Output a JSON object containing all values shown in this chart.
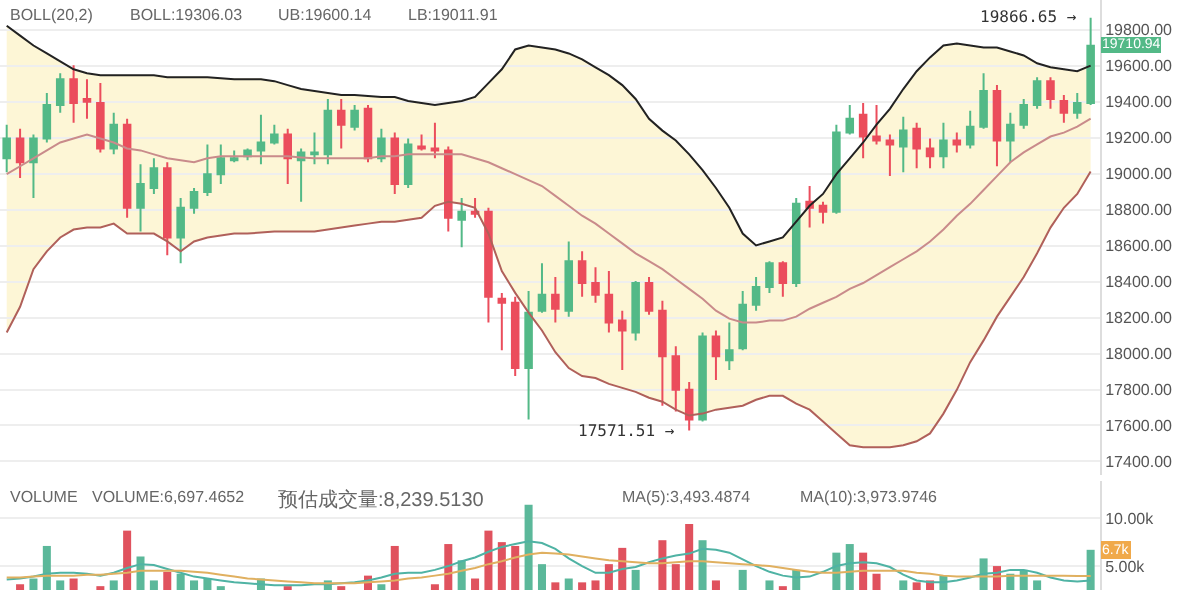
{
  "chart_data": [
    {
      "type": "candlestick",
      "categories": [
        null,
        null,
        null,
        null,
        null,
        null,
        null,
        null,
        null,
        null,
        null,
        null,
        null,
        null,
        null,
        null,
        null,
        null,
        null,
        null,
        null,
        null,
        null,
        null,
        null,
        null,
        null,
        null,
        null,
        null,
        null,
        null,
        null,
        null,
        null,
        null,
        null,
        null,
        null,
        null,
        null,
        null,
        null,
        null,
        null,
        null,
        null,
        null,
        null,
        null,
        null,
        null,
        null,
        null,
        null,
        null,
        null,
        null,
        null,
        null,
        null,
        null,
        null,
        null,
        null,
        null,
        null,
        null,
        null,
        null,
        null,
        null,
        null,
        null,
        null,
        null,
        null,
        null,
        null,
        null,
        null,
        null
      ],
      "ohlc": [
        [
          19085,
          19272,
          19008,
          19195
        ],
        [
          19195,
          19250,
          18975,
          19063
        ],
        [
          19063,
          19217,
          18865,
          19195
        ],
        [
          19195,
          19448,
          19173,
          19382
        ],
        [
          19382,
          19558,
          19338,
          19525
        ],
        [
          19525,
          19602,
          19283,
          19393
        ],
        [
          19415,
          19525,
          19305,
          19400
        ],
        [
          19393,
          19503,
          19118,
          19140
        ],
        [
          19140,
          19338,
          19107,
          19272
        ],
        [
          19272,
          19305,
          18755,
          18810
        ],
        [
          18810,
          19052,
          18678,
          18942
        ],
        [
          18920,
          19085,
          18887,
          19030
        ],
        [
          19030,
          19063,
          18546,
          18645
        ],
        [
          18645,
          18865,
          18502,
          18810
        ],
        [
          18810,
          18920,
          18777,
          18898
        ],
        [
          18898,
          19162,
          18876,
          18997
        ],
        [
          18997,
          19162,
          18942,
          19085
        ],
        [
          19074,
          19129,
          19063,
          19085
        ],
        [
          19096,
          19140,
          19074,
          19129
        ],
        [
          19129,
          19327,
          19052,
          19173
        ],
        [
          19173,
          19272,
          19162,
          19217
        ],
        [
          19217,
          19250,
          18942,
          19085
        ],
        [
          19074,
          19140,
          18843,
          19118
        ],
        [
          19107,
          19228,
          19052,
          19118
        ],
        [
          19107,
          19415,
          19052,
          19349
        ],
        [
          19349,
          19415,
          19140,
          19272
        ],
        [
          19261,
          19382,
          19239,
          19349
        ],
        [
          19360,
          19382,
          19063,
          19085
        ],
        [
          19085,
          19250,
          19063,
          19195
        ],
        [
          19195,
          19228,
          18887,
          18942
        ],
        [
          18942,
          19195,
          18920,
          19162
        ],
        [
          19151,
          19217,
          19129,
          19140
        ],
        [
          19140,
          19283,
          19085,
          19129
        ],
        [
          19129,
          19151,
          18678,
          18755
        ],
        [
          18744,
          18865,
          18590,
          18788
        ],
        [
          18788,
          18865,
          18755,
          18777
        ],
        [
          18788,
          18810,
          18172,
          18315
        ],
        [
          18304,
          18337,
          18018,
          18282
        ],
        [
          18282,
          18315,
          17875,
          17919
        ],
        [
          17919,
          18348,
          17633,
          18227
        ],
        [
          18238,
          18502,
          18227,
          18326
        ],
        [
          18326,
          18425,
          18172,
          18249
        ],
        [
          18238,
          18623,
          18205,
          18513
        ],
        [
          18513,
          18568,
          18315,
          18392
        ],
        [
          18392,
          18480,
          18282,
          18326
        ],
        [
          18326,
          18458,
          18117,
          18172
        ],
        [
          18183,
          18238,
          17908,
          18128
        ],
        [
          18117,
          18403,
          18073,
          18392
        ],
        [
          18392,
          18425,
          18216,
          18238
        ],
        [
          18238,
          18293,
          17710,
          17985
        ],
        [
          17985,
          18040,
          17677,
          17798
        ],
        [
          17798,
          17842,
          17571.51,
          17633
        ],
        [
          17633,
          18117,
          17622,
          18095
        ],
        [
          18095,
          18128,
          17853,
          17985
        ],
        [
          17963,
          18172,
          17908,
          18018
        ],
        [
          18029,
          18348,
          18018,
          18271
        ],
        [
          18271,
          18425,
          18238,
          18370
        ],
        [
          18370,
          18513,
          18337,
          18502
        ],
        [
          18502,
          18513,
          18315,
          18392
        ],
        [
          18392,
          18865,
          18370,
          18832
        ],
        [
          18843,
          18931,
          18700,
          18810
        ],
        [
          18821,
          18843,
          18722,
          18788
        ],
        [
          18788,
          19272,
          18777,
          19228
        ],
        [
          19228,
          19382,
          19217,
          19305
        ],
        [
          19327,
          19393,
          19085,
          19206
        ],
        [
          19206,
          19382,
          19162,
          19184
        ],
        [
          19184,
          19217,
          18986,
          19162
        ],
        [
          19151,
          19316,
          19008,
          19239
        ],
        [
          19250,
          19283,
          19030,
          19140
        ],
        [
          19140,
          19195,
          19030,
          19096
        ],
        [
          19096,
          19283,
          19030,
          19184
        ],
        [
          19184,
          19228,
          19118,
          19162
        ],
        [
          19162,
          19349,
          19140,
          19261
        ],
        [
          19261,
          19558,
          19250,
          19459
        ],
        [
          19459,
          19492,
          19041,
          19184
        ],
        [
          19184,
          19338,
          19063,
          19272
        ],
        [
          19272,
          19415,
          19250,
          19382
        ],
        [
          19382,
          19536,
          19360,
          19514
        ],
        [
          19514,
          19536,
          19360,
          19415
        ],
        [
          19404,
          19437,
          19283,
          19338
        ],
        [
          19338,
          19448,
          19305,
          19393
        ],
        [
          19393,
          19866.65,
          19382,
          19710.94
        ]
      ],
      "series": [
        {
          "type": "line",
          "color": "#222222",
          "values": [
            19822,
            19767,
            19712,
            19668,
            19624,
            19580,
            19558,
            19547,
            19547,
            19547,
            19547,
            19547,
            19536,
            19536,
            19536,
            19536,
            19530,
            19525,
            19525,
            19525,
            19514,
            19492,
            19470,
            19459,
            19448,
            19437,
            19437,
            19432,
            19426,
            19426,
            19404,
            19393,
            19382,
            19393,
            19404,
            19426,
            19503,
            19580,
            19690,
            19712,
            19701,
            19690,
            19668,
            19635,
            19591,
            19547,
            19492,
            19415,
            19305,
            19239,
            19184,
            19107,
            19019,
            18920,
            18810,
            18667,
            18601,
            18623,
            18645,
            18733,
            18821,
            18887,
            18997,
            19085,
            19173,
            19272,
            19360,
            19470,
            19569,
            19646,
            19712,
            19723,
            19712,
            19701,
            19701,
            19679,
            19657,
            19613,
            19591,
            19580,
            19569,
            19600.14
          ]
        },
        {
          "type": "line",
          "color": "#c98b8b",
          "lower": [
            18120,
            18260,
            18470,
            18570,
            18650,
            18690,
            18700,
            18700,
            18720,
            18670,
            18670,
            18670,
            18620,
            18570,
            18620,
            18650,
            18660,
            18670,
            18670,
            18670,
            18680,
            18680,
            18680,
            18680,
            18690,
            18700,
            18710,
            18720,
            18730,
            18730,
            18740,
            18760,
            18820,
            18840,
            18830,
            18810,
            18670,
            18460,
            18340,
            18230,
            18130,
            18010,
            17920,
            17880,
            17860,
            17830,
            17810,
            17790,
            17750,
            17730,
            17690,
            17660,
            17670,
            17690,
            17700,
            17710,
            17740,
            17770,
            17770,
            17720,
            17690,
            17620,
            17560,
            17490,
            17480,
            17480,
            17480,
            17490,
            17510,
            17560,
            17670,
            17800,
            17950,
            18070,
            18200,
            18320,
            18430,
            18560,
            18700,
            18810,
            18890,
            19011.91
          ],
          "upper": [
            19820,
            19770,
            19710,
            19670,
            19620,
            19580,
            19560,
            19550,
            19550,
            19550,
            19550,
            19550,
            19540,
            19540,
            19540,
            19540,
            19530,
            19530,
            19530,
            19530,
            19510,
            19490,
            19470,
            19460,
            19450,
            19440,
            19440,
            19430,
            19430,
            19430,
            19400,
            19390,
            19380,
            19390,
            19400,
            19430,
            19500,
            19580,
            19690,
            19710,
            19700,
            19690,
            19670,
            19640,
            19590,
            19550,
            19490,
            19420,
            19300,
            19240,
            19180,
            19110,
            19020,
            18920,
            18810,
            18670,
            18600,
            18620,
            18650,
            18730,
            18820,
            18890,
            19000,
            19090,
            19170,
            19270,
            19360,
            19470,
            19570,
            19650,
            19710,
            19720,
            19710,
            19700,
            19700,
            19680,
            19660,
            19610,
            19590,
            19580,
            19570,
            19600.14
          ],
          "values": [
            18997,
            19041,
            19085,
            19129,
            19173,
            19195,
            19217,
            19195,
            19173,
            19140,
            19129,
            19107,
            19085,
            19074,
            19063,
            19085,
            19096,
            19096,
            19096,
            19096,
            19096,
            19096,
            19090,
            19085,
            19085,
            19085,
            19085,
            19085,
            19096,
            19096,
            19107,
            19107,
            19107,
            19107,
            19107,
            19085,
            19063,
            19030,
            18997,
            18964,
            18931,
            18876,
            18821,
            18766,
            18722,
            18667,
            18612,
            18557,
            18513,
            18469,
            18414,
            18359,
            18304,
            18238,
            18194,
            18172,
            18172,
            18183,
            18183,
            18205,
            18249,
            18282,
            18315,
            18359,
            18392,
            18436,
            18480,
            18524,
            18568,
            18623,
            18689,
            18766,
            18832,
            18909,
            18986,
            19063,
            19118,
            19162,
            19206,
            19228,
            19261,
            19306.03
          ]
        },
        {
          "type": "line",
          "color": "#b0605a",
          "values": [
            18117,
            18260,
            18469,
            18568,
            18645,
            18689,
            18700,
            18700,
            18722,
            18667,
            18667,
            18667,
            18623,
            18568,
            18623,
            18645,
            18656,
            18667,
            18667,
            18672,
            18678,
            18678,
            18678,
            18678,
            18689,
            18700,
            18711,
            18722,
            18733,
            18733,
            18744,
            18755,
            18821,
            18843,
            18832,
            18810,
            18667,
            18458,
            18337,
            18227,
            18128,
            18007,
            17919,
            17875,
            17864,
            17831,
            17809,
            17787,
            17754,
            17732,
            17688,
            17655,
            17666,
            17688,
            17699,
            17710,
            17743,
            17765,
            17765,
            17721,
            17688,
            17622,
            17556,
            17490,
            17479,
            17479,
            17479,
            17490,
            17512,
            17556,
            17666,
            17798,
            17952,
            18073,
            18205,
            18315,
            18425,
            18557,
            18700,
            18810,
            18887,
            19011.91
          ]
        }
      ],
      "ylim": [
        17325,
        19965
      ],
      "yticks": [
        {
          "value": 17400,
          "label": "17400.00"
        },
        {
          "value": 17600,
          "label": "17600.00"
        },
        {
          "value": 17800,
          "label": "17800.00"
        },
        {
          "value": 18000,
          "label": "18000.00"
        },
        {
          "value": 18200,
          "label": "18200.00"
        },
        {
          "value": 18400,
          "label": "18400.00"
        },
        {
          "value": 18600,
          "label": "18600.00"
        },
        {
          "value": 18800,
          "label": "18800.00"
        },
        {
          "value": 19000,
          "label": "19000.00"
        },
        {
          "value": 19200,
          "label": "19200.00"
        },
        {
          "value": 19400,
          "label": "19400.00"
        },
        {
          "value": 19600,
          "label": "19600.00"
        },
        {
          "value": 19800,
          "label": "19800.00"
        }
      ],
      "grid": "y",
      "tick_labels": "y",
      "annotations": [
        "BOLL(20,2)",
        "BOLL:19306.03",
        "UB:19600.14",
        "LB:19011.91",
        "19866.65 →",
        "17571.51 →",
        "19710.94"
      ]
    },
    {
      "type": "bar",
      "categories": [
        null,
        null,
        null,
        null,
        null,
        null,
        null,
        null,
        null,
        null,
        null,
        null,
        null,
        null,
        null,
        null,
        null,
        null,
        null,
        null,
        null,
        null,
        null,
        null,
        null,
        null,
        null,
        null,
        null,
        null,
        null,
        null,
        null,
        null,
        null,
        null,
        null,
        null,
        null,
        null,
        null,
        null,
        null,
        null,
        null,
        null,
        null,
        null,
        null,
        null,
        null,
        null,
        null,
        null,
        null,
        null,
        null,
        null,
        null,
        null,
        null,
        null,
        null,
        null,
        null,
        null,
        null,
        null,
        null,
        null,
        null,
        null,
        null,
        null,
        null,
        null,
        null,
        null,
        null,
        null,
        null,
        null
      ],
      "values": [
        null,
        3100,
        3700,
        7100,
        3500,
        3700,
        null,
        2900,
        3500,
        8700,
        6000,
        3500,
        4400,
        4200,
        3500,
        3700,
        2900,
        null,
        null,
        3700,
        null,
        2900,
        null,
        null,
        3500,
        2900,
        null,
        4000,
        3100,
        7100,
        null,
        null,
        3100,
        7300,
        5600,
        3700,
        8700,
        7500,
        7100,
        11400,
        5200,
        3300,
        3700,
        3300,
        3500,
        5200,
        6900,
        4600,
        null,
        7700,
        5200,
        9400,
        7700,
        3500,
        null,
        4600,
        null,
        3500,
        2900,
        4600,
        null,
        null,
        6400,
        7300,
        6400,
        4200,
        null,
        3500,
        3300,
        3500,
        4000,
        null,
        null,
        5800,
        5000,
        4200,
        4600,
        3500,
        null,
        null,
        null,
        6697.4652
      ],
      "colors": [
        "#e0525e",
        "#e0525e",
        "#5bb89a",
        "#5bb89a",
        "#5bb89a",
        "#e0525e",
        "#e0525e",
        "#e0525e",
        "#5bb89a",
        "#e0525e",
        "#5bb89a",
        "#5bb89a",
        "#e0525e",
        "#5bb89a",
        "#5bb89a",
        "#5bb89a",
        "#5bb89a",
        "#5bb89a",
        "#5bb89a",
        "#5bb89a",
        "#5bb89a",
        "#e0525e",
        "#5bb89a",
        "#5bb89a",
        "#5bb89a",
        "#e0525e",
        "#5bb89a",
        "#e0525e",
        "#5bb89a",
        "#e0525e",
        "#5bb89a",
        "#5bb89a",
        "#e0525e",
        "#e0525e",
        "#5bb89a",
        "#e0525e",
        "#e0525e",
        "#e0525e",
        "#e0525e",
        "#5bb89a",
        "#5bb89a",
        "#e0525e",
        "#5bb89a",
        "#e0525e",
        "#e0525e",
        "#e0525e",
        "#e0525e",
        "#5bb89a",
        "#e0525e",
        "#e0525e",
        "#e0525e",
        "#e0525e",
        "#5bb89a",
        "#e0525e",
        "#5bb89a",
        "#5bb89a",
        "#5bb89a",
        "#5bb89a",
        "#e0525e",
        "#5bb89a",
        "#5bb89a",
        "#e0525e",
        "#5bb89a",
        "#5bb89a",
        "#e0525e",
        "#e0525e",
        "#e0525e",
        "#5bb89a",
        "#e0525e",
        "#e0525e",
        "#5bb89a",
        "#e0525e",
        "#e0525e",
        "#5bb89a",
        "#e0525e",
        "#5bb89a",
        "#5bb89a",
        "#5bb89a",
        "#5bb89a",
        "#e0525e",
        "#e0525e",
        "#5bb89a"
      ],
      "series": [
        {
          "type": "line",
          "color": "#4fb3a4",
          "values": [
            3600,
            3700,
            3900,
            4200,
            4300,
            4300,
            4200,
            4000,
            4300,
            4800,
            5200,
            5100,
            4700,
            4300,
            3900,
            3700,
            3500,
            3300,
            3200,
            3100,
            3000,
            3000,
            3000,
            3100,
            3100,
            3200,
            3300,
            3500,
            3800,
            4200,
            4300,
            4300,
            4600,
            5000,
            5500,
            5900,
            6500,
            7000,
            7300,
            7600,
            7400,
            6800,
            5800,
            5000,
            4300,
            4300,
            4700,
            4900,
            5400,
            5800,
            6100,
            6300,
            6800,
            6700,
            6400,
            5700,
            5000,
            4400,
            4000,
            3800,
            3900,
            4400,
            5000,
            5300,
            5400,
            5300,
            4900,
            4100,
            3500,
            3300,
            3300,
            3500,
            3800,
            4200,
            4300,
            4600,
            4600,
            4300,
            3800,
            3500,
            3400,
            3493.4874
          ]
        },
        {
          "type": "line",
          "color": "#e0b060",
          "values": [
            3800,
            3800,
            3900,
            4000,
            4000,
            4000,
            4100,
            4100,
            4200,
            4300,
            4500,
            4500,
            4500,
            4500,
            4400,
            4300,
            4100,
            3900,
            3700,
            3600,
            3500,
            3400,
            3300,
            3200,
            3200,
            3200,
            3200,
            3300,
            3400,
            3500,
            3700,
            3800,
            4000,
            4200,
            4500,
            4800,
            5200,
            5500,
            5900,
            6200,
            6400,
            6300,
            6200,
            6000,
            5800,
            5600,
            5500,
            5400,
            5300,
            5300,
            5400,
            5500,
            5500,
            5400,
            5300,
            5200,
            5100,
            5000,
            4800,
            4600,
            4400,
            4300,
            4300,
            4400,
            4500,
            4500,
            4500,
            4500,
            4300,
            4200,
            4000,
            3900,
            3900,
            3900,
            3900,
            4000,
            4000,
            4000,
            4000,
            4000,
            3950,
            3973.9746
          ]
        }
      ],
      "ylim": [
        2500,
        13900
      ],
      "yticks": [
        {
          "value": 5000,
          "label": "5.00k"
        },
        {
          "value": 10000,
          "label": "10.00k"
        }
      ],
      "grid": "y",
      "tick_labels": "y",
      "annotations": [
        "VOLUME",
        "VOLUME:6,697.4652",
        "预估成交量:8,239.5130",
        "MA(5):3,493.4874",
        "MA(10):3,973.9746",
        {
          "text": "6.7k",
          "y": 6697.4652
        }
      ]
    }
  ]
}
